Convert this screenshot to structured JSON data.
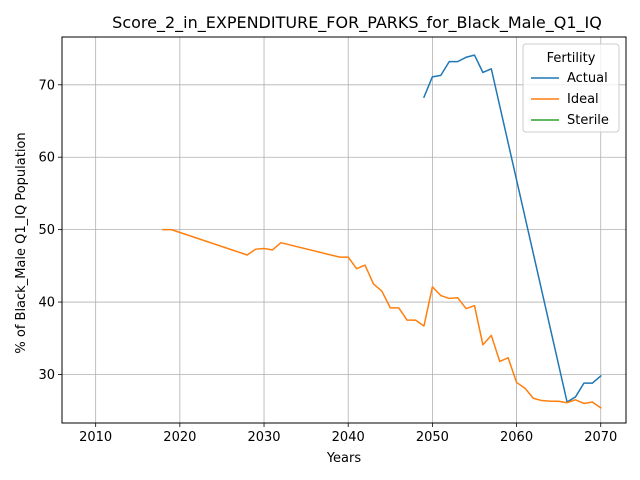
{
  "chart_data": {
    "type": "line",
    "title": "Score_2_in_EXPENDITURE_FOR_PARKS_for_Black_Male_Q1_IQ",
    "xlabel": "Years",
    "ylabel": "% of Black_Male Q1_IQ Population",
    "xlim": [
      2006,
      2073
    ],
    "ylim": [
      23.3,
      76.6
    ],
    "xticks": [
      2010,
      2020,
      2030,
      2040,
      2050,
      2060,
      2070
    ],
    "yticks": [
      30,
      40,
      50,
      60,
      70
    ],
    "grid": true,
    "legend": {
      "title": "Fertility",
      "placement": "top-right"
    },
    "series": [
      {
        "name": "Actual",
        "color": "#1f77b4",
        "x": [
          2049,
          2050,
          2051,
          2052,
          2053,
          2054,
          2055,
          2056,
          2057,
          2066,
          2067,
          2068,
          2069,
          2070
        ],
        "y": [
          68.3,
          71.1,
          71.3,
          73.2,
          73.2,
          73.8,
          74.1,
          71.7,
          72.2,
          26.2,
          26.9,
          28.8,
          28.8,
          29.8
        ]
      },
      {
        "name": "Ideal",
        "color": "#ff7f0e",
        "x": [
          2018,
          2019,
          2028,
          2029,
          2030,
          2031,
          2032,
          2039,
          2040,
          2041,
          2042,
          2043,
          2044,
          2045,
          2046,
          2047,
          2048,
          2049,
          2050,
          2051,
          2052,
          2053,
          2054,
          2055,
          2056,
          2057,
          2058,
          2059,
          2060,
          2061,
          2062,
          2063,
          2064,
          2065,
          2066,
          2067,
          2068,
          2069,
          2070
        ],
        "y": [
          50.0,
          50.0,
          46.5,
          47.3,
          47.4,
          47.2,
          48.2,
          46.2,
          46.2,
          44.6,
          45.1,
          42.5,
          41.5,
          39.2,
          39.2,
          37.5,
          37.5,
          36.7,
          42.1,
          40.9,
          40.5,
          40.6,
          39.1,
          39.5,
          34.1,
          35.4,
          31.8,
          32.3,
          28.9,
          28.1,
          26.7,
          26.4,
          26.3,
          26.3,
          26.1,
          26.5,
          26.0,
          26.2,
          25.4
        ]
      },
      {
        "name": "Sterile",
        "color": "#2ca02c",
        "x": [],
        "y": []
      }
    ]
  }
}
